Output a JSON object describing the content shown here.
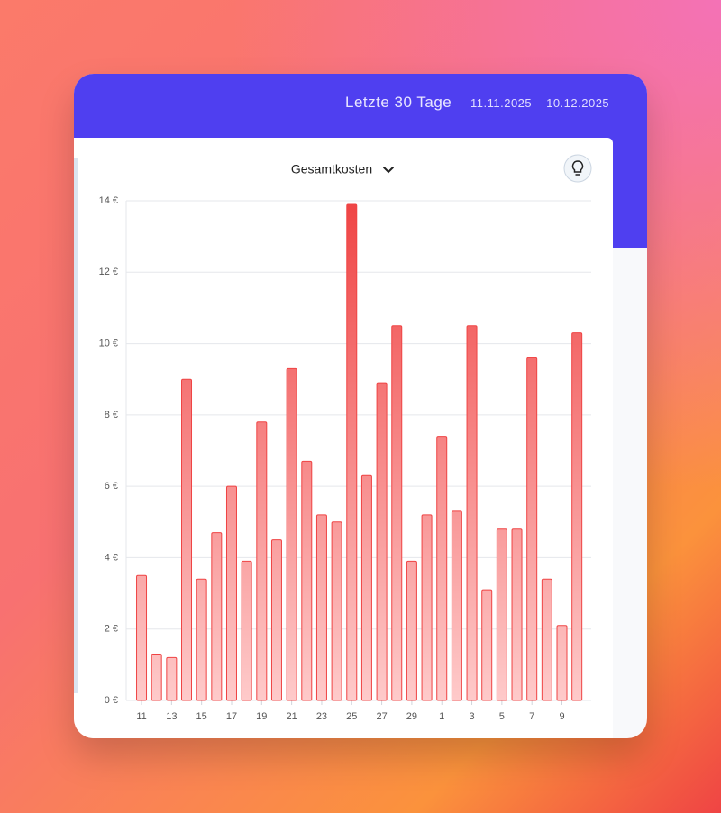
{
  "header": {
    "title": "Letzte 30 Tage",
    "date_range": "11.11.2025 – 10.12.2025"
  },
  "dropdown": {
    "label": "Gesamtkosten"
  },
  "chart_data": {
    "type": "bar",
    "categories": [
      "11",
      null,
      "13",
      null,
      "15",
      null,
      "17",
      null,
      "19",
      null,
      "21",
      null,
      "23",
      null,
      "25",
      null,
      "27",
      null,
      "29",
      null,
      "1",
      null,
      "3",
      null,
      "5",
      null,
      "7",
      null,
      "9",
      null
    ],
    "values": [
      3.5,
      1.3,
      1.2,
      9.0,
      3.4,
      4.7,
      6.0,
      3.9,
      7.8,
      4.5,
      9.3,
      6.7,
      5.2,
      5.0,
      13.9,
      6.3,
      8.9,
      10.5,
      3.9,
      5.2,
      7.4,
      5.3,
      10.5,
      3.1,
      4.8,
      4.8,
      9.6,
      3.4,
      2.1,
      10.3
    ],
    "color": "#ef4444",
    "ylim": [
      0,
      14
    ],
    "yticks": [
      {
        "value": 0,
        "label": "0 €"
      },
      {
        "value": 2,
        "label": "2 €"
      },
      {
        "value": 4,
        "label": "4 €"
      },
      {
        "value": 6,
        "label": "6 €"
      },
      {
        "value": 8,
        "label": "8 €"
      },
      {
        "value": 10,
        "label": "10 €"
      },
      {
        "value": 12,
        "label": "12 €"
      },
      {
        "value": 14,
        "label": "14 €"
      }
    ],
    "grid": true
  }
}
